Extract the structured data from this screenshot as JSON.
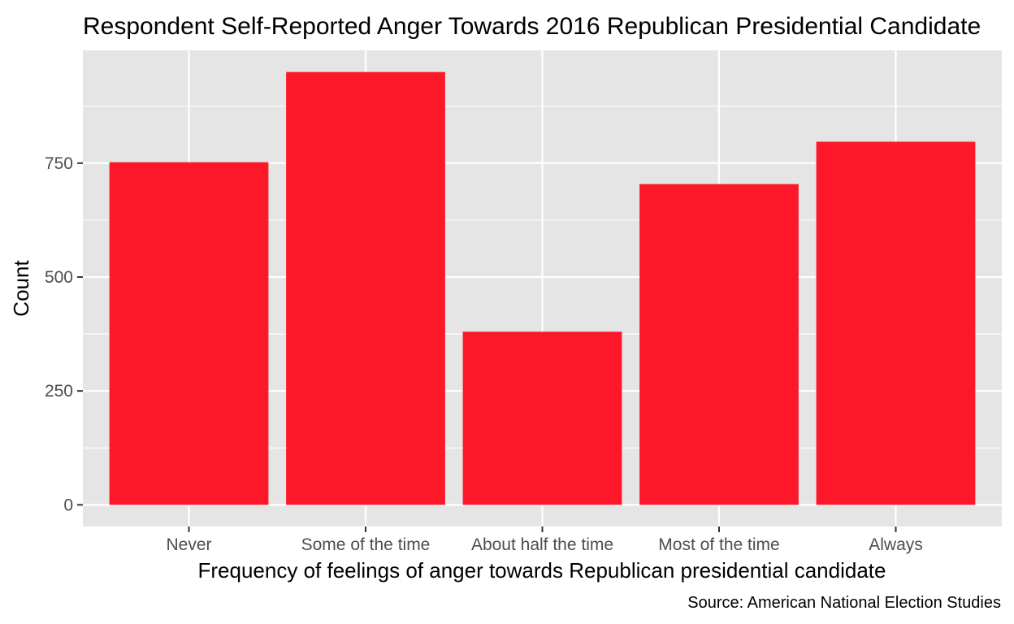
{
  "chart_data": {
    "type": "bar",
    "title": "Respondent Self-Reported Anger Towards 2016 Republican Presidential Candidate",
    "xlabel": "Frequency of feelings of anger towards Republican presidential candidate",
    "ylabel": "Count",
    "caption": "Source: American National Election Studies",
    "categories": [
      "Never",
      "Some of the time",
      "About half the time",
      "Most of the time",
      "Always"
    ],
    "values": [
      752,
      950,
      380,
      704,
      797
    ],
    "yticks": [
      0,
      250,
      500,
      750
    ],
    "ylim": [
      -47.5,
      997.5
    ],
    "grid": true,
    "legend": "none",
    "colors": {
      "bar": "#FC1828",
      "panel": "#E5E5E5",
      "grid": "#FFFFFF",
      "tick": "#333333",
      "tick_label": "#4D4D4D"
    }
  }
}
